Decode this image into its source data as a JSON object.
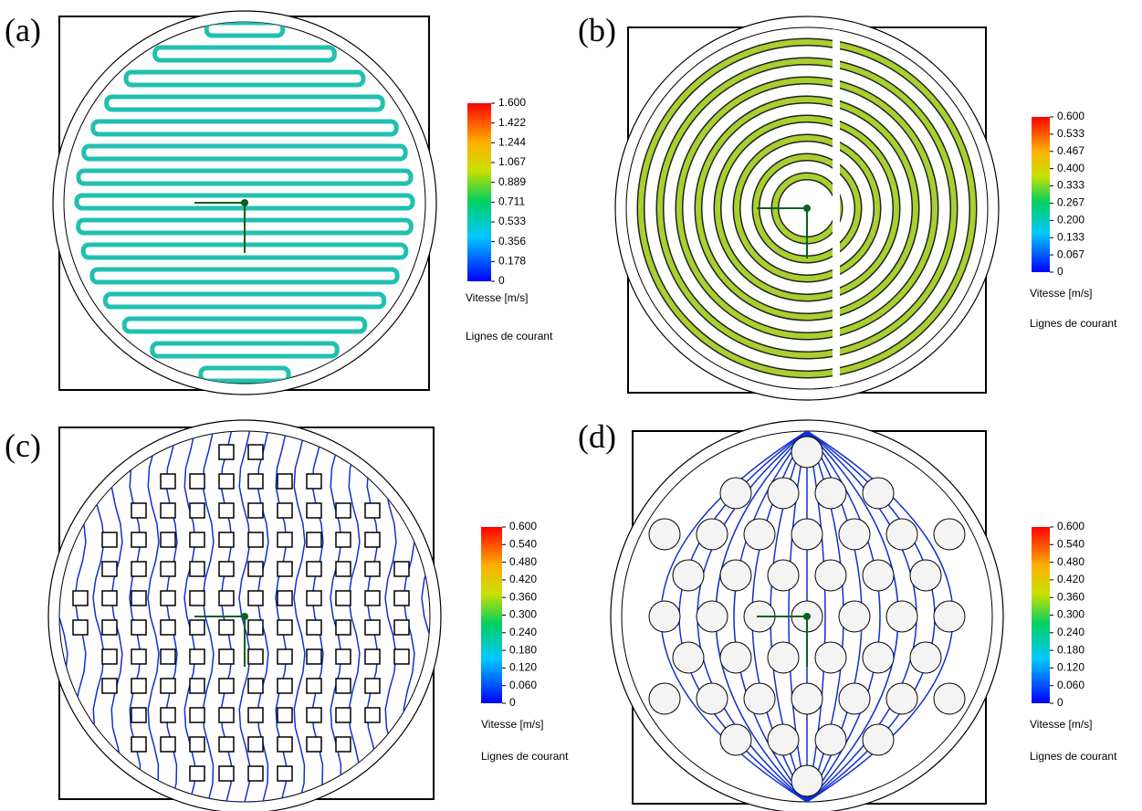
{
  "panels": [
    {
      "label": "(a)",
      "colorbar": {
        "ticks": [
          "1.600",
          "1.422",
          "1.244",
          "1.067",
          "0.889",
          "0.711",
          "0.533",
          "0.356",
          "0.178",
          "0"
        ],
        "title": "Vitesse [m/s]"
      },
      "caption": "Lignes de courant"
    },
    {
      "label": "(b)",
      "colorbar": {
        "ticks": [
          "0.600",
          "0.533",
          "0.467",
          "0.400",
          "0.333",
          "0.267",
          "0.200",
          "0.133",
          "0.067",
          "0"
        ],
        "title": "Vitesse [m/s]"
      },
      "caption": "Lignes de courant"
    },
    {
      "label": "(c)",
      "colorbar": {
        "ticks": [
          "0.600",
          "0.540",
          "0.480",
          "0.420",
          "0.360",
          "0.300",
          "0.240",
          "0.180",
          "0.120",
          "0.060",
          "0"
        ],
        "title": "Vitesse [m/s]"
      },
      "caption": "Lignes de courant"
    },
    {
      "label": "(d)",
      "colorbar": {
        "ticks": [
          "0.600",
          "0.540",
          "0.480",
          "0.420",
          "0.360",
          "0.300",
          "0.240",
          "0.180",
          "0.120",
          "0.060",
          "0"
        ],
        "title": "Vitesse [m/s]"
      },
      "caption": "Lignes de courant"
    }
  ]
}
